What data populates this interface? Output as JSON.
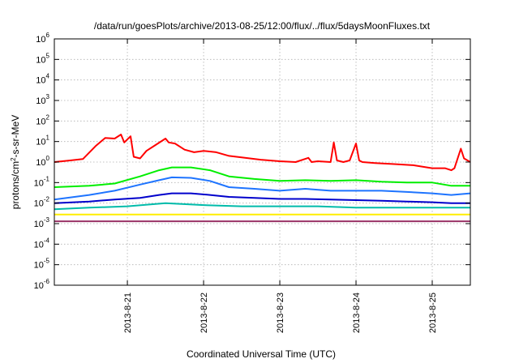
{
  "chart_data": {
    "type": "line",
    "title": "/data/run/goesPlots/archive/2013-08-25/12:00/flux/../flux/5daysMoonFluxes.txt",
    "xlabel": "Coordinated Universal Time (UTC)",
    "ylabel": "protons/cm2-s-sr-MeV",
    "ylabel_parts": {
      "prefix": "protons/cm",
      "sup": "2",
      "suffix": "-s-sr-MeV"
    },
    "yscale": "log",
    "ylim": [
      1e-06,
      1000000.0
    ],
    "xlim": [
      "2013-08-20 01:00",
      "2013-08-25 12:00"
    ],
    "grid": true,
    "y_ticks": [
      {
        "value": 1e-06,
        "base": "10",
        "exp": "-6"
      },
      {
        "value": 1e-05,
        "base": "10",
        "exp": "-5"
      },
      {
        "value": 0.0001,
        "base": "10",
        "exp": "-4"
      },
      {
        "value": 0.001,
        "base": "10",
        "exp": "-3"
      },
      {
        "value": 0.01,
        "base": "10",
        "exp": "-2"
      },
      {
        "value": 0.1,
        "base": "10",
        "exp": "-1"
      },
      {
        "value": 1,
        "base": "10",
        "exp": "0"
      },
      {
        "value": 10.0,
        "base": "10",
        "exp": "1"
      },
      {
        "value": 100.0,
        "base": "10",
        "exp": "2"
      },
      {
        "value": 1000.0,
        "base": "10",
        "exp": "3"
      },
      {
        "value": 10000.0,
        "base": "10",
        "exp": "4"
      },
      {
        "value": 100000.0,
        "base": "10",
        "exp": "5"
      },
      {
        "value": 1000000.0,
        "base": "10",
        "exp": "6"
      }
    ],
    "x_ticks": [
      {
        "value": "2013-08-21 00:00",
        "label": "2013-8-21"
      },
      {
        "value": "2013-08-22 00:00",
        "label": "2013-8-22"
      },
      {
        "value": "2013-08-23 00:00",
        "label": "2013-8-23"
      },
      {
        "value": "2013-08-24 00:00",
        "label": "2013-8-24"
      },
      {
        "value": "2013-08-25 00:00",
        "label": "2013-8-25"
      }
    ],
    "series": [
      {
        "color": "#ff0000",
        "x": [
          "2013-08-20 01:00",
          "2013-08-20 06:00",
          "2013-08-20 10:00",
          "2013-08-20 14:00",
          "2013-08-20 17:00",
          "2013-08-20 20:00",
          "2013-08-20 22:00",
          "2013-08-20 23:00",
          "2013-08-21 01:00",
          "2013-08-21 02:00",
          "2013-08-21 04:00",
          "2013-08-21 06:00",
          "2013-08-21 09:00",
          "2013-08-21 12:00",
          "2013-08-21 13:00",
          "2013-08-21 15:00",
          "2013-08-21 18:00",
          "2013-08-21 21:00",
          "2013-08-22 00:00",
          "2013-08-22 04:00",
          "2013-08-22 08:00",
          "2013-08-22 12:00",
          "2013-08-22 18:00",
          "2013-08-23 00:00",
          "2013-08-23 05:00",
          "2013-08-23 09:00",
          "2013-08-23 10:00",
          "2013-08-23 12:00",
          "2013-08-23 16:00",
          "2013-08-23 17:00",
          "2013-08-23 18:00",
          "2013-08-23 20:00",
          "2013-08-23 22:00",
          "2013-08-24 00:00",
          "2013-08-24 01:00",
          "2013-08-24 02:00",
          "2013-08-24 06:00",
          "2013-08-24 12:00",
          "2013-08-24 18:00",
          "2013-08-25 00:00",
          "2013-08-25 04:00",
          "2013-08-25 06:00",
          "2013-08-25 07:00",
          "2013-08-25 09:00",
          "2013-08-25 10:00",
          "2013-08-25 12:00"
        ],
        "y": [
          1.0,
          1.2,
          1.4,
          6.0,
          15,
          14,
          22,
          9,
          18,
          1.8,
          1.5,
          3.5,
          7,
          14,
          9,
          8,
          4,
          3,
          3.5,
          3,
          2,
          1.7,
          1.3,
          1.1,
          1.0,
          1.6,
          1.0,
          1.1,
          1.0,
          9,
          1.2,
          1.0,
          1.2,
          8,
          1.2,
          1.0,
          0.9,
          0.8,
          0.7,
          0.5,
          0.5,
          0.4,
          0.5,
          4.5,
          1.5,
          1.0
        ]
      },
      {
        "color": "#00ee00",
        "x": [
          "2013-08-20 01:00",
          "2013-08-20 12:00",
          "2013-08-20 20:00",
          "2013-08-21 04:00",
          "2013-08-21 10:00",
          "2013-08-21 14:00",
          "2013-08-21 20:00",
          "2013-08-22 02:00",
          "2013-08-22 08:00",
          "2013-08-22 16:00",
          "2013-08-23 00:00",
          "2013-08-23 08:00",
          "2013-08-23 16:00",
          "2013-08-24 00:00",
          "2013-08-24 08:00",
          "2013-08-24 16:00",
          "2013-08-25 00:00",
          "2013-08-25 06:00",
          "2013-08-25 12:00"
        ],
        "y": [
          0.06,
          0.07,
          0.09,
          0.2,
          0.4,
          0.55,
          0.55,
          0.4,
          0.2,
          0.15,
          0.12,
          0.13,
          0.12,
          0.13,
          0.11,
          0.1,
          0.1,
          0.07,
          0.07
        ]
      },
      {
        "color": "#1e74ff",
        "x": [
          "2013-08-20 01:00",
          "2013-08-20 12:00",
          "2013-08-20 20:00",
          "2013-08-21 04:00",
          "2013-08-21 10:00",
          "2013-08-21 14:00",
          "2013-08-21 20:00",
          "2013-08-22 02:00",
          "2013-08-22 08:00",
          "2013-08-22 16:00",
          "2013-08-23 00:00",
          "2013-08-23 08:00",
          "2013-08-23 16:00",
          "2013-08-24 00:00",
          "2013-08-24 08:00",
          "2013-08-24 16:00",
          "2013-08-25 00:00",
          "2013-08-25 06:00",
          "2013-08-25 12:00"
        ],
        "y": [
          0.015,
          0.025,
          0.04,
          0.08,
          0.13,
          0.18,
          0.17,
          0.12,
          0.06,
          0.05,
          0.04,
          0.05,
          0.04,
          0.04,
          0.04,
          0.035,
          0.03,
          0.025,
          0.03
        ]
      },
      {
        "color": "#0000cc",
        "x": [
          "2013-08-20 01:00",
          "2013-08-20 12:00",
          "2013-08-20 20:00",
          "2013-08-21 04:00",
          "2013-08-21 10:00",
          "2013-08-21 14:00",
          "2013-08-21 20:00",
          "2013-08-22 02:00",
          "2013-08-22 08:00",
          "2013-08-22 16:00",
          "2013-08-23 00:00",
          "2013-08-23 08:00",
          "2013-08-23 16:00",
          "2013-08-24 00:00",
          "2013-08-24 08:00",
          "2013-08-24 16:00",
          "2013-08-25 00:00",
          "2013-08-25 06:00",
          "2013-08-25 12:00"
        ],
        "y": [
          0.01,
          0.012,
          0.015,
          0.018,
          0.025,
          0.03,
          0.03,
          0.025,
          0.02,
          0.018,
          0.016,
          0.016,
          0.015,
          0.014,
          0.013,
          0.012,
          0.011,
          0.01,
          0.01
        ]
      },
      {
        "color": "#00bbaa",
        "x": [
          "2013-08-20 01:00",
          "2013-08-20 12:00",
          "2013-08-21 00:00",
          "2013-08-21 12:00",
          "2013-08-22 00:00",
          "2013-08-22 12:00",
          "2013-08-23 00:00",
          "2013-08-23 12:00",
          "2013-08-24 00:00",
          "2013-08-24 12:00",
          "2013-08-25 00:00",
          "2013-08-25 12:00"
        ],
        "y": [
          0.005,
          0.006,
          0.007,
          0.01,
          0.008,
          0.007,
          0.007,
          0.007,
          0.006,
          0.006,
          0.006,
          0.006
        ]
      },
      {
        "color": "#ffee00",
        "x": [
          "2013-08-20 01:00",
          "2013-08-21 00:00",
          "2013-08-22 00:00",
          "2013-08-23 00:00",
          "2013-08-24 00:00",
          "2013-08-25 00:00",
          "2013-08-25 12:00"
        ],
        "y": [
          0.0028,
          0.0028,
          0.0028,
          0.0028,
          0.0028,
          0.0028,
          0.0028
        ]
      },
      {
        "color": "#993366",
        "x": [
          "2013-08-20 01:00",
          "2013-08-21 00:00",
          "2013-08-22 00:00",
          "2013-08-23 00:00",
          "2013-08-24 00:00",
          "2013-08-25 00:00",
          "2013-08-25 12:00"
        ],
        "y": [
          0.0013,
          0.0013,
          0.0013,
          0.0013,
          0.0013,
          0.0013,
          0.0013
        ]
      }
    ]
  }
}
